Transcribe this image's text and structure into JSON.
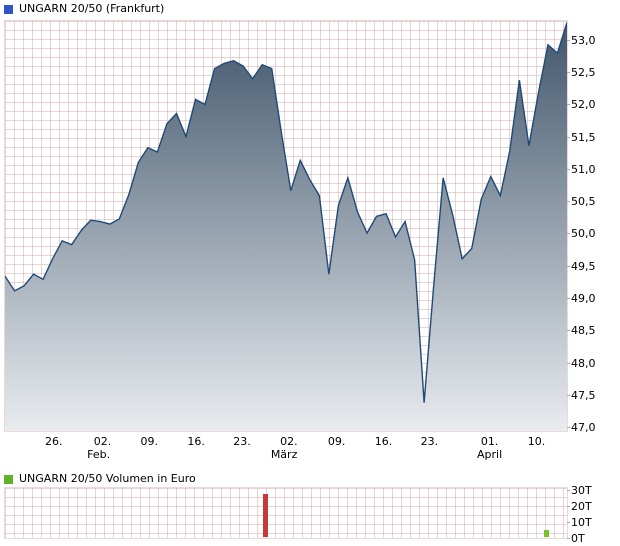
{
  "header": {
    "title": "UNGARN 20/50 (Frankfurt)",
    "marker_color": "#2f55c4"
  },
  "volume_header": {
    "title": "UNGARN 20/50 Volumen in Euro",
    "marker_color": "#5fb32a"
  },
  "chart_data": [
    {
      "type": "area",
      "title": "UNGARN 20/50 (Frankfurt)",
      "ylim": [
        46.94,
        53.32
      ],
      "x_days_total": 59,
      "series": [
        49.35,
        49.12,
        49.2,
        49.38,
        49.3,
        49.62,
        49.9,
        49.84,
        50.06,
        50.22,
        50.2,
        50.16,
        50.24,
        50.62,
        51.12,
        51.35,
        51.28,
        51.72,
        51.88,
        51.52,
        52.1,
        52.02,
        52.58,
        52.66,
        52.7,
        52.62,
        52.42,
        52.64,
        52.58,
        51.6,
        50.68,
        51.15,
        50.85,
        50.6,
        49.38,
        50.45,
        50.88,
        50.35,
        50.02,
        50.28,
        50.32,
        49.96,
        50.2,
        49.6,
        47.38,
        49.2,
        50.88,
        50.3,
        49.62,
        49.78,
        50.55,
        50.9,
        50.6,
        51.3,
        52.4,
        51.38,
        52.2,
        52.95,
        52.82,
        53.3
      ],
      "y_ticks": [
        {
          "label": "53,0",
          "value": 53.0
        },
        {
          "label": "52,5",
          "value": 52.5
        },
        {
          "label": "52,0",
          "value": 52.0
        },
        {
          "label": "51,5",
          "value": 51.5
        },
        {
          "label": "51,0",
          "value": 51.0
        },
        {
          "label": "50,5",
          "value": 50.5
        },
        {
          "label": "50,0",
          "value": 50.0
        },
        {
          "label": "49,5",
          "value": 49.5
        },
        {
          "label": "49,0",
          "value": 49.0
        },
        {
          "label": "48,5",
          "value": 48.5
        },
        {
          "label": "48,0",
          "value": 48.0
        },
        {
          "label": "47,5",
          "value": 47.5
        },
        {
          "label": "47,0",
          "value": 47.0
        }
      ],
      "x_ticks": [
        {
          "label": "26.",
          "day": 5.2
        },
        {
          "label": "02.",
          "day": 10.3
        },
        {
          "label": "09.",
          "day": 15.2
        },
        {
          "label": "16.",
          "day": 20.1
        },
        {
          "label": "23.",
          "day": 24.9
        },
        {
          "label": "02.",
          "day": 29.8
        },
        {
          "label": "09.",
          "day": 34.8
        },
        {
          "label": "16.",
          "day": 39.7
        },
        {
          "label": "23.",
          "day": 44.5
        },
        {
          "label": "01.",
          "day": 50.8
        },
        {
          "label": "10.",
          "day": 55.7
        }
      ],
      "x_month_ticks": [
        {
          "label": "Feb.",
          "day": 9.9
        },
        {
          "label": "März",
          "day": 29.3
        },
        {
          "label": "April",
          "day": 50.8
        }
      ],
      "line_color": "#1e4a78",
      "fill_top": "#41566c",
      "fill_bottom": "#e9ecef",
      "grid": true,
      "legend_position": "top-left"
    },
    {
      "type": "bar",
      "title": "UNGARN 20/50 Volumen in Euro",
      "ylim": [
        0,
        32500
      ],
      "y_ticks": [
        {
          "label": "30T",
          "value": 30000
        },
        {
          "label": "20T",
          "value": 20000
        },
        {
          "label": "10T",
          "value": 10000
        },
        {
          "label": "0T",
          "value": 0
        }
      ],
      "bars": [
        {
          "day": 27.3,
          "value": 27000,
          "color": "#c23b3b"
        },
        {
          "day": 56.6,
          "value": 4500,
          "color": "#74c32e"
        }
      ],
      "grid": true
    }
  ]
}
